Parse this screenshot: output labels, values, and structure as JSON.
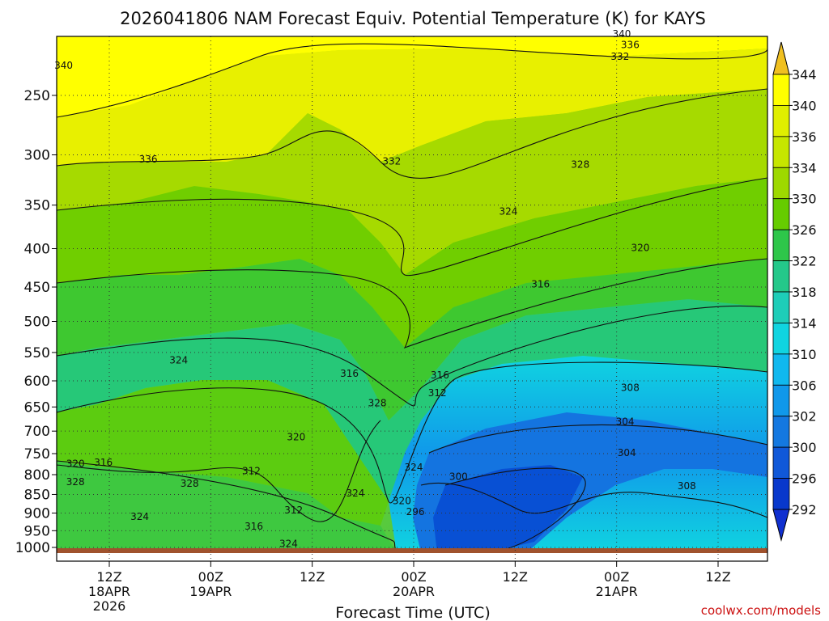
{
  "title": "2026041806 NAM Forecast Equiv. Potential Temperature (K) for KAYS",
  "credit": "coolwx.com/models",
  "chart_data": {
    "type": "heatmap",
    "title": "2026041806 NAM Forecast Equiv. Potential Temperature (K) for KAYS",
    "xlabel": "Forecast Time (UTC)",
    "ylabel": "",
    "y_ticks": [
      "250",
      "300",
      "350",
      "400",
      "450",
      "500",
      "550",
      "600",
      "650",
      "700",
      "750",
      "800",
      "850",
      "900",
      "950",
      "1000"
    ],
    "y_tick_values": [
      250,
      300,
      350,
      400,
      450,
      500,
      550,
      600,
      650,
      700,
      750,
      800,
      850,
      900,
      950,
      1000
    ],
    "y_log_scale": true,
    "ylim": [
      200,
      1000
    ],
    "x_ticks": [
      {
        "hour": 6,
        "line1": "12Z",
        "line2": "18APR",
        "line3": "2026"
      },
      {
        "hour": 18,
        "line1": "00Z",
        "line2": "19APR",
        "line3": ""
      },
      {
        "hour": 30,
        "line1": "12Z",
        "line2": "",
        "line3": ""
      },
      {
        "hour": 42,
        "line1": "00Z",
        "line2": "20APR",
        "line3": ""
      },
      {
        "hour": 54,
        "line1": "12Z",
        "line2": "",
        "line3": ""
      },
      {
        "hour": 66,
        "line1": "00Z",
        "line2": "21APR",
        "line3": ""
      },
      {
        "hour": 78,
        "line1": "12Z",
        "line2": "",
        "line3": ""
      }
    ],
    "colorbar": {
      "labels": [
        "344",
        "340",
        "336",
        "334",
        "330",
        "326",
        "322",
        "318",
        "314",
        "310",
        "306",
        "302",
        "300",
        "296",
        "292"
      ],
      "colors": [
        "#f0c020",
        "#ffff00",
        "#e0ee00",
        "#c6e600",
        "#9ed800",
        "#66cc00",
        "#2ec64a",
        "#24c88a",
        "#1ecdb8",
        "#10d4e0",
        "#10b8ee",
        "#1098ea",
        "#1478e0",
        "#1058d8",
        "#0838cc",
        "#1030d0"
      ]
    },
    "contour_labels": [
      {
        "text": "340",
        "t": 0.6,
        "p": 228
      },
      {
        "text": "340",
        "t": 66.6,
        "p": 207
      },
      {
        "text": "336",
        "t": 67.6,
        "p": 214
      },
      {
        "text": "332",
        "t": 66.4,
        "p": 222
      },
      {
        "text": "336",
        "t": 10.6,
        "p": 304
      },
      {
        "text": "332",
        "t": 39.4,
        "p": 306
      },
      {
        "text": "328",
        "t": 61.7,
        "p": 309
      },
      {
        "text": "324",
        "t": 53.2,
        "p": 357
      },
      {
        "text": "320",
        "t": 68.8,
        "p": 399
      },
      {
        "text": "316",
        "t": 57.0,
        "p": 446
      },
      {
        "text": "324",
        "t": 14.2,
        "p": 563
      },
      {
        "text": "316",
        "t": 34.4,
        "p": 587
      },
      {
        "text": "316",
        "t": 45.1,
        "p": 590
      },
      {
        "text": "312",
        "t": 44.8,
        "p": 623
      },
      {
        "text": "328",
        "t": 37.7,
        "p": 642
      },
      {
        "text": "308",
        "t": 67.6,
        "p": 613
      },
      {
        "text": "304",
        "t": 67.0,
        "p": 680
      },
      {
        "text": "320",
        "t": 28.1,
        "p": 713
      },
      {
        "text": "304",
        "t": 67.2,
        "p": 748
      },
      {
        "text": "320",
        "t": 2.0,
        "p": 774
      },
      {
        "text": "316",
        "t": 5.3,
        "p": 771
      },
      {
        "text": "324",
        "t": 42.0,
        "p": 782
      },
      {
        "text": "312",
        "t": 22.8,
        "p": 791
      },
      {
        "text": "300",
        "t": 47.3,
        "p": 805
      },
      {
        "text": "328",
        "t": 2.0,
        "p": 818
      },
      {
        "text": "328",
        "t": 15.5,
        "p": 822
      },
      {
        "text": "308",
        "t": 74.3,
        "p": 828
      },
      {
        "text": "324",
        "t": 35.1,
        "p": 847
      },
      {
        "text": "320",
        "t": 40.6,
        "p": 867
      },
      {
        "text": "312",
        "t": 27.8,
        "p": 892
      },
      {
        "text": "296",
        "t": 42.2,
        "p": 897
      },
      {
        "text": "324",
        "t": 9.6,
        "p": 910
      },
      {
        "text": "316",
        "t": 23.1,
        "p": 937
      },
      {
        "text": "324",
        "t": 27.2,
        "p": 989
      }
    ]
  }
}
